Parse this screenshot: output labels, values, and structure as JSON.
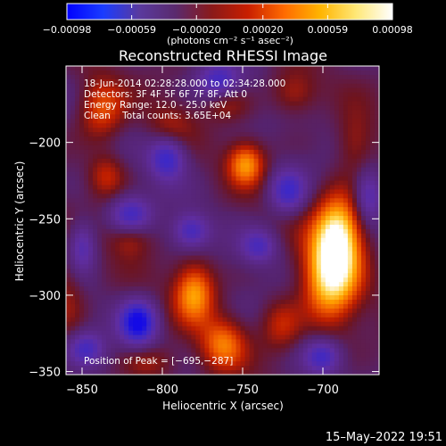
{
  "chart_data": {
    "type": "heatmap",
    "title": "Reconstructed RHESSI Image",
    "xlabel": "Heliocentric X (arcsec)",
    "ylabel": "Heliocentric Y (arcsec)",
    "xlim": [
      -860,
      -665
    ],
    "ylim": [
      -352,
      -150
    ],
    "x_ticks": [
      {
        "value": -850,
        "label": "−850"
      },
      {
        "value": -800,
        "label": "−800"
      },
      {
        "value": -750,
        "label": "−750"
      },
      {
        "value": -700,
        "label": "−700"
      }
    ],
    "y_ticks": [
      {
        "value": -200,
        "label": "−200"
      },
      {
        "value": -250,
        "label": "−250"
      },
      {
        "value": -300,
        "label": "−300"
      },
      {
        "value": -350,
        "label": "−350"
      }
    ],
    "colorbar": {
      "range": [
        -0.00098,
        0.00098
      ],
      "tick_values": [
        -0.00098,
        -0.00059,
        -0.0002,
        0.0002,
        0.00059,
        0.00098
      ],
      "tick_labels": [
        "−0.00098",
        "−0.00059",
        "−0.00020",
        "0.00020",
        "0.00059",
        "0.00098"
      ],
      "unit": "(photons cm⁻² s⁻¹ asec⁻²)",
      "colormap": [
        "#0000ff",
        "#1a3cff",
        "#5a3a9e",
        "#5a2a6e",
        "#8a1a1a",
        "#c81e00",
        "#ff6a00",
        "#ffb400",
        "#ffe878",
        "#ffffff"
      ]
    },
    "annotations": [
      "18-Jun-2014 02:28:28.000 to 02:34:28.000",
      "Detectors: 3F 4F 5F 6F 7F 8F, Att 0",
      "Energy Range: 12.0 - 25.0 keV",
      "Clean    Total counts: 3.65E+04"
    ],
    "peak_label": "Position of Peak = [−695,−287]",
    "peak": {
      "x": -695,
      "y": -287
    },
    "hotspots": [
      {
        "x": -695,
        "y": -287,
        "amp": 1.0,
        "sx": 12,
        "sy": 22
      },
      {
        "x": -690,
        "y": -258,
        "amp": 0.85,
        "sx": 10,
        "sy": 18
      },
      {
        "x": -780,
        "y": -298,
        "amp": 0.75,
        "sx": 9,
        "sy": 14
      },
      {
        "x": -762,
        "y": -332,
        "amp": 0.6,
        "sx": 10,
        "sy": 12
      },
      {
        "x": -748,
        "y": -214,
        "amp": 0.7,
        "sx": 8,
        "sy": 10
      },
      {
        "x": -838,
        "y": -178,
        "amp": 0.55,
        "sx": 10,
        "sy": 14
      },
      {
        "x": -835,
        "y": -222,
        "amp": 0.4,
        "sx": 8,
        "sy": 10
      },
      {
        "x": -820,
        "y": -262,
        "amp": 0.35,
        "sx": 9,
        "sy": 9
      },
      {
        "x": -718,
        "y": -168,
        "amp": 0.35,
        "sx": 10,
        "sy": 10
      },
      {
        "x": -726,
        "y": -320,
        "amp": 0.4,
        "sx": 9,
        "sy": 12
      },
      {
        "x": -795,
        "y": -188,
        "amp": 0.25,
        "sx": 10,
        "sy": 10
      },
      {
        "x": -680,
        "y": -200,
        "amp": 0.3,
        "sx": 8,
        "sy": 14
      },
      {
        "x": -860,
        "y": -300,
        "amp": 0.3,
        "sx": 8,
        "sy": 20
      },
      {
        "x": -760,
        "y": -175,
        "amp": 0.25,
        "sx": 10,
        "sy": 8
      },
      {
        "x": -808,
        "y": -345,
        "amp": 0.3,
        "sx": 12,
        "sy": 8
      }
    ],
    "coldspots": [
      {
        "x": -815,
        "y": -318,
        "amp": -0.9,
        "sx": 8,
        "sy": 10
      },
      {
        "x": -820,
        "y": -248,
        "amp": -0.6,
        "sx": 9,
        "sy": 9
      },
      {
        "x": -797,
        "y": -210,
        "amp": -0.65,
        "sx": 8,
        "sy": 10
      },
      {
        "x": -782,
        "y": -258,
        "amp": -0.55,
        "sx": 8,
        "sy": 8
      },
      {
        "x": -765,
        "y": -160,
        "amp": -0.55,
        "sx": 9,
        "sy": 8
      },
      {
        "x": -722,
        "y": -232,
        "amp": -0.6,
        "sx": 8,
        "sy": 10
      },
      {
        "x": -740,
        "y": -268,
        "amp": -0.5,
        "sx": 8,
        "sy": 8
      },
      {
        "x": -700,
        "y": -340,
        "amp": -0.55,
        "sx": 8,
        "sy": 8
      },
      {
        "x": -850,
        "y": -268,
        "amp": -0.5,
        "sx": 6,
        "sy": 12
      },
      {
        "x": -672,
        "y": -235,
        "amp": -0.45,
        "sx": 6,
        "sy": 12
      },
      {
        "x": -848,
        "y": -335,
        "amp": -0.5,
        "sx": 8,
        "sy": 8
      }
    ],
    "grid": false,
    "legend": "none"
  },
  "footer": {
    "timestamp": "15–May–2022 19:51"
  }
}
